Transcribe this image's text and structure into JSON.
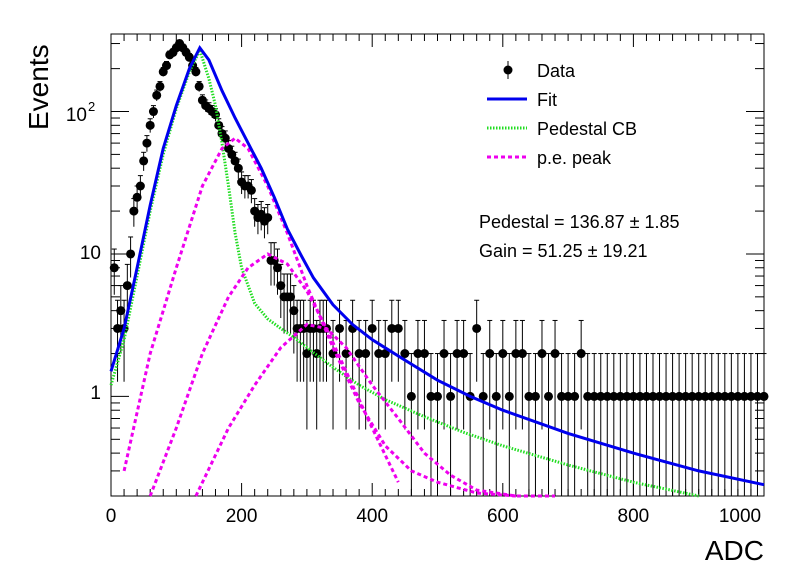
{
  "chart_data": {
    "type": "scatter",
    "xlabel": "ADC",
    "ylabel": "Events",
    "xlim": [
      0,
      1000
    ],
    "ylim": [
      0.2,
      350
    ],
    "yscale": "log",
    "grid": false,
    "legend_placement": "top-right",
    "x_ticks": [
      "0",
      "200",
      "400",
      "600",
      "800",
      "1000"
    ],
    "y_ticks": [
      {
        "value": 1,
        "label": "1"
      },
      {
        "value": 10,
        "label": "10"
      },
      {
        "value": 100,
        "label": "10",
        "exponent": "2"
      }
    ],
    "legend": {
      "data": "Data",
      "fit": "Fit",
      "pedestal": "Pedestal CB",
      "pe_peak": "p.e. peak"
    },
    "annotations": {
      "pedestal": "Pedestal = 136.87 ± 1.85",
      "gain": "Gain = 51.25 ± 19.21"
    },
    "colors": {
      "data": "#000000",
      "fit": "#0000ee",
      "pedestal": "#22dd22",
      "pe_peak": "#ee00ee"
    },
    "fit_params": {
      "pedestal": 136.87,
      "pedestal_err": 1.85,
      "gain": 51.25,
      "gain_err": 19.21
    },
    "series": [
      {
        "name": "Data",
        "kind": "points",
        "x": [
          5,
          10,
          15,
          20,
          25,
          30,
          35,
          40,
          45,
          50,
          55,
          60,
          65,
          70,
          75,
          80,
          85,
          90,
          95,
          100,
          105,
          110,
          115,
          120,
          125,
          130,
          135,
          140,
          145,
          150,
          155,
          160,
          165,
          170,
          175,
          180,
          185,
          190,
          195,
          200,
          205,
          210,
          215,
          220,
          225,
          230,
          235,
          240,
          245,
          250,
          255,
          260,
          265,
          270,
          275,
          280,
          285,
          290,
          295,
          300,
          305,
          310,
          315,
          320,
          325,
          330,
          340,
          350,
          360,
          370,
          380,
          390,
          400,
          410,
          420,
          430,
          440,
          450,
          460,
          470,
          480,
          490,
          500,
          510,
          520,
          530,
          540,
          550,
          560,
          570,
          580,
          590,
          600,
          610,
          620,
          630,
          640,
          650,
          660,
          670,
          680,
          690,
          700,
          710,
          720,
          730,
          740,
          750,
          760,
          770,
          780,
          790,
          800,
          810,
          820,
          830,
          840,
          850,
          860,
          870,
          880,
          890,
          900,
          910,
          920,
          930,
          940,
          950,
          960,
          970,
          980,
          990,
          1000
        ],
        "y": [
          8,
          3,
          4,
          3,
          6,
          10,
          20,
          25,
          30,
          45,
          60,
          80,
          100,
          130,
          150,
          190,
          210,
          250,
          260,
          280,
          300,
          280,
          260,
          240,
          210,
          190,
          150,
          120,
          110,
          105,
          100,
          95,
          80,
          70,
          65,
          55,
          50,
          45,
          40,
          32,
          30,
          30,
          28,
          20,
          18,
          19,
          17,
          18,
          9,
          9,
          8,
          6,
          5,
          5,
          5,
          4,
          3,
          3,
          3,
          2,
          3,
          3,
          2,
          3,
          3,
          3,
          2,
          3,
          2,
          3,
          2,
          2,
          3,
          2,
          2,
          3,
          3,
          2,
          1,
          2,
          2,
          1,
          1,
          2,
          1,
          2,
          2,
          1,
          3,
          1,
          2,
          1,
          2,
          1,
          2,
          2,
          1,
          1,
          2,
          1,
          2,
          1,
          1,
          1,
          2,
          1,
          1,
          1,
          1,
          1,
          1,
          1,
          1,
          1,
          1,
          1,
          1,
          1,
          1,
          1,
          1,
          1,
          1,
          1,
          1,
          1,
          1,
          1,
          1,
          1,
          1,
          1,
          1
        ]
      },
      {
        "name": "Fit",
        "kind": "line",
        "x": [
          0,
          20,
          40,
          60,
          80,
          100,
          120,
          136,
          150,
          170,
          190,
          210,
          230,
          250,
          270,
          290,
          310,
          340,
          370,
          400,
          450,
          500,
          550,
          600,
          700,
          800,
          900,
          1000
        ],
        "y": [
          1.5,
          3,
          8,
          22,
          55,
          110,
          200,
          280,
          230,
          140,
          90,
          60,
          40,
          25,
          15,
          10,
          6.8,
          4.4,
          3.2,
          2.5,
          1.8,
          1.3,
          1.0,
          0.8,
          0.55,
          0.4,
          0.3,
          0.24
        ]
      },
      {
        "name": "Pedestal CB",
        "kind": "dotted",
        "x": [
          0,
          20,
          40,
          60,
          80,
          100,
          120,
          136,
          150,
          160,
          170,
          180,
          190,
          200,
          220,
          240,
          260,
          280,
          300,
          340,
          380,
          420,
          480,
          540,
          600,
          700,
          800,
          900
        ],
        "y": [
          1.2,
          2.5,
          7,
          20,
          50,
          105,
          190,
          270,
          170,
          110,
          60,
          30,
          14,
          8,
          4.5,
          3.5,
          3.0,
          2.6,
          2.2,
          1.6,
          1.2,
          0.95,
          0.72,
          0.56,
          0.45,
          0.33,
          0.25,
          0.2
        ]
      },
      {
        "name": "p.e. peak",
        "kind": "dashed",
        "x": [
          20,
          60,
          100,
          140,
          170,
          190,
          210,
          240,
          270,
          300,
          340,
          380,
          420,
          460,
          500,
          560,
          620
        ],
        "y": [
          0.3,
          2,
          8,
          30,
          55,
          65,
          55,
          30,
          14,
          6,
          2.2,
          0.9,
          0.45,
          0.3,
          0.25,
          0.21,
          0.2
        ]
      },
      {
        "name": "p.e. peak",
        "kind": "dashed",
        "x": [
          60,
          100,
          140,
          180,
          210,
          240,
          270,
          300,
          330,
          360,
          400,
          440
        ],
        "y": [
          0.2,
          0.6,
          2,
          5,
          8,
          10,
          8.5,
          5.5,
          3,
          1.5,
          0.6,
          0.25
        ]
      },
      {
        "name": "p.e. peak",
        "kind": "dashed",
        "x": [
          130,
          180,
          220,
          260,
          300,
          330,
          360,
          400,
          440,
          480,
          520,
          560,
          620,
          680
        ],
        "y": [
          0.2,
          0.6,
          1.2,
          2.2,
          3.2,
          3.0,
          2.2,
          1.2,
          0.7,
          0.4,
          0.28,
          0.22,
          0.2,
          0.2
        ]
      }
    ]
  }
}
